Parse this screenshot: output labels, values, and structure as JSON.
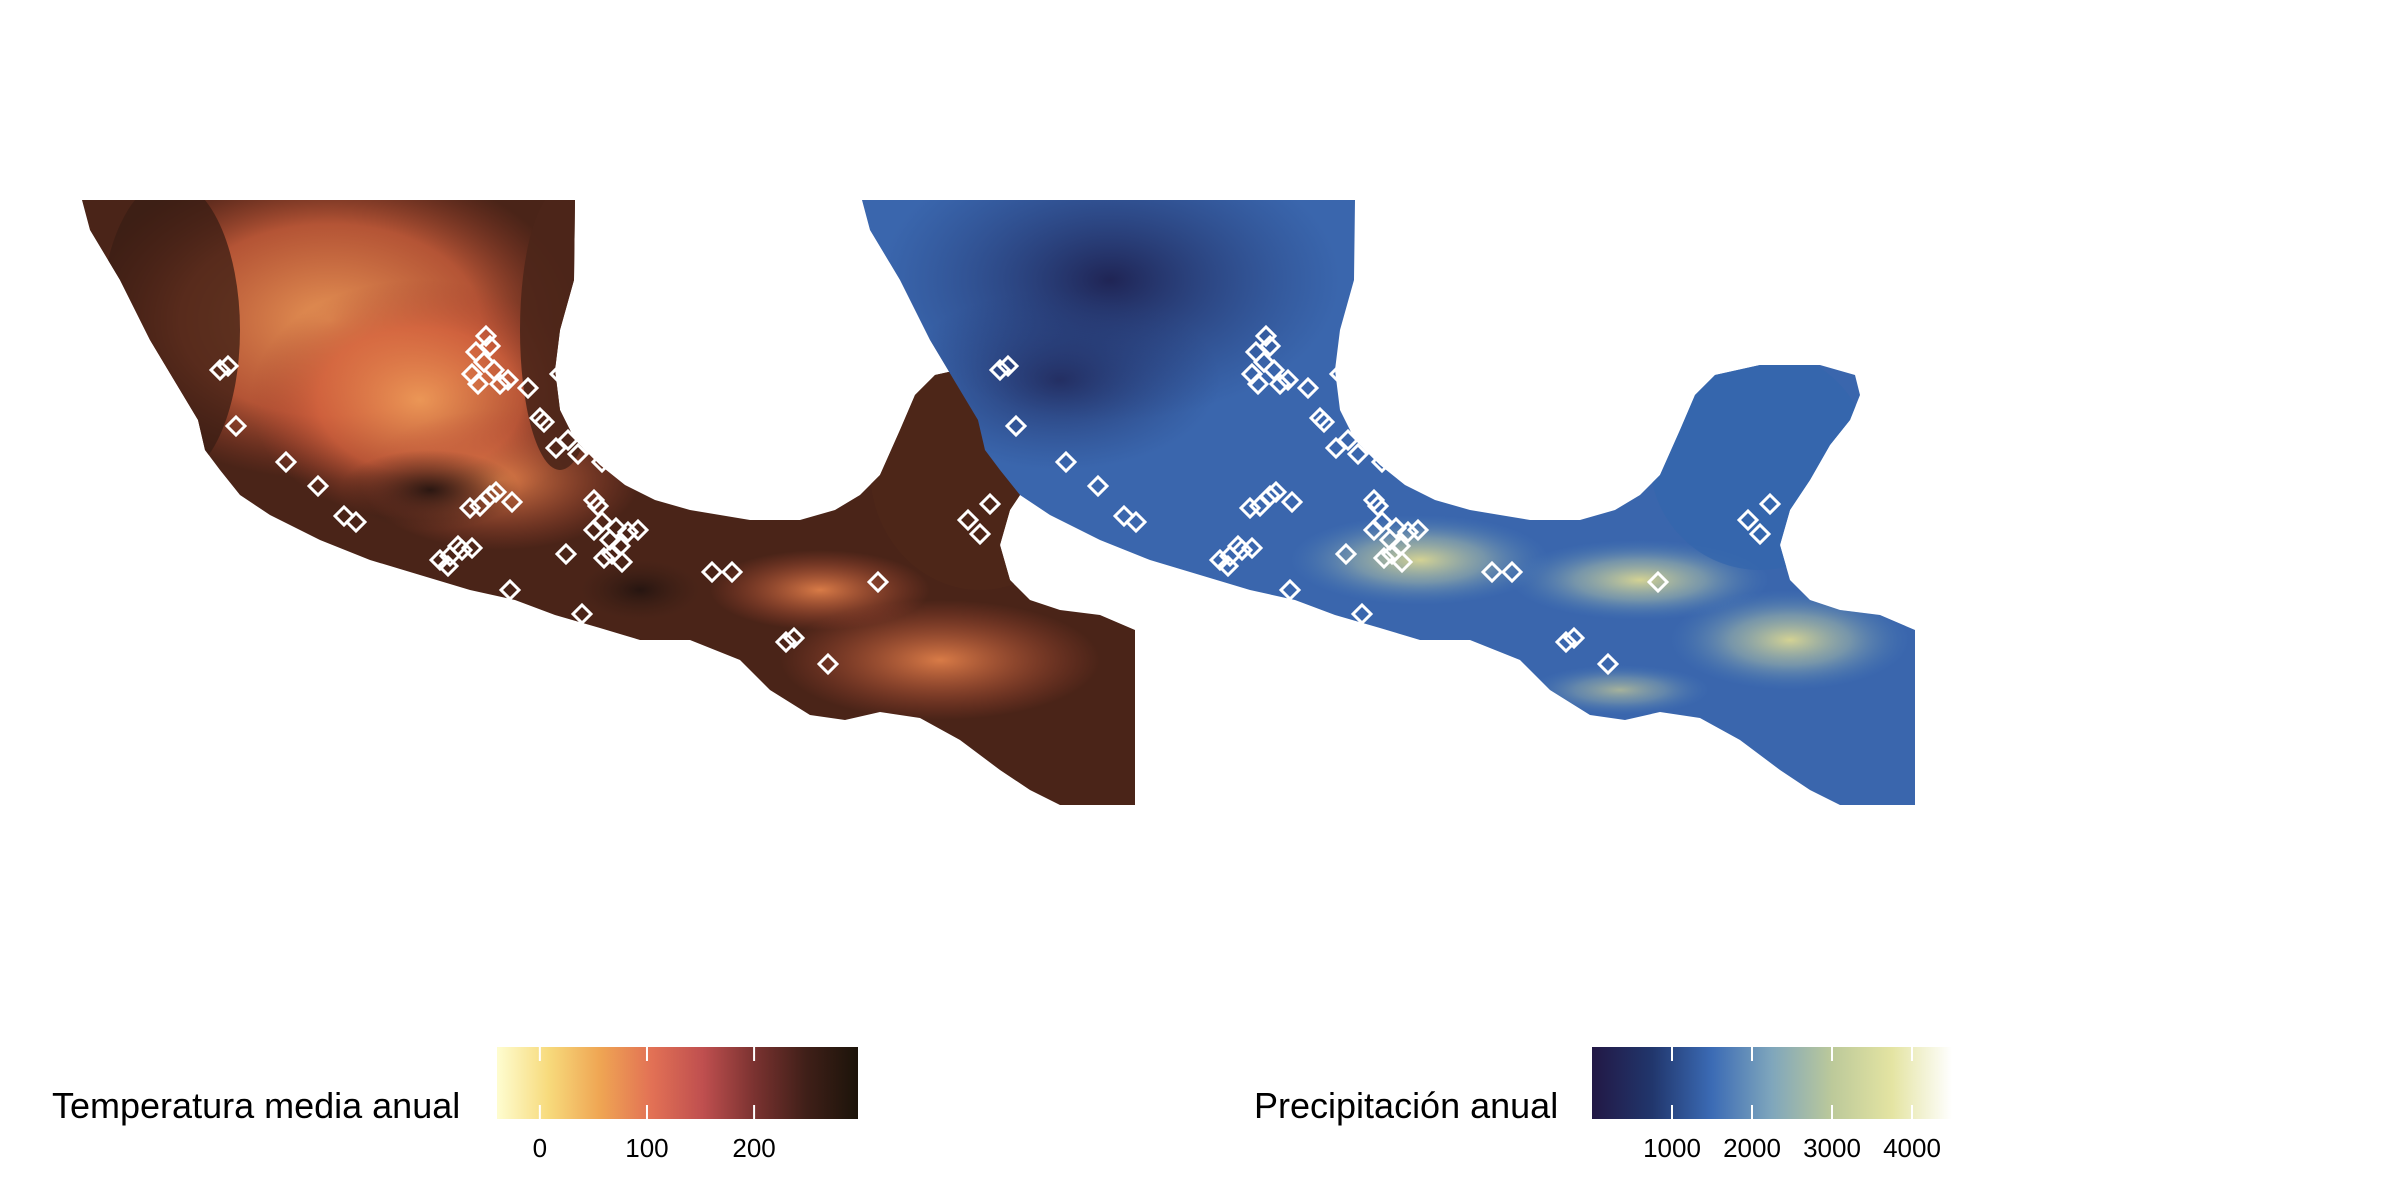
{
  "maps": [
    {
      "id": "temperature",
      "legend": {
        "title": "Temperatura media anual",
        "ticks": [
          0,
          100,
          200
        ],
        "range": [
          -40,
          297
        ],
        "colors": [
          "#fefdd0",
          "#f7da7c",
          "#efa553",
          "#e27155",
          "#bf4f4f",
          "#7a3230",
          "#3f1f18",
          "#1c140a"
        ]
      },
      "palette": {
        "cold": "#2f1a12",
        "mid": "#8a3a2c",
        "warm": "#d65f40",
        "hot": "#ef9a55",
        "lowland": "#4a2418"
      }
    },
    {
      "id": "precipitation",
      "legend": {
        "title": "Precipitación anual",
        "ticks": [
          1000,
          2000,
          3000,
          4000
        ],
        "range": [
          0,
          4500
        ],
        "colors": [
          "#221845",
          "#21366c",
          "#3b6bb5",
          "#7fa6bc",
          "#bcc99a",
          "#e4e4a2",
          "#ffffff"
        ]
      },
      "palette": {
        "dry": "#1f2755",
        "mid": "#2f5c9f",
        "wet": "#3f72b8",
        "very_wet": "#d6d48d"
      }
    }
  ],
  "markers": {
    "shape": "diamond",
    "stroke_color": "#ffffff",
    "count": 64
  }
}
